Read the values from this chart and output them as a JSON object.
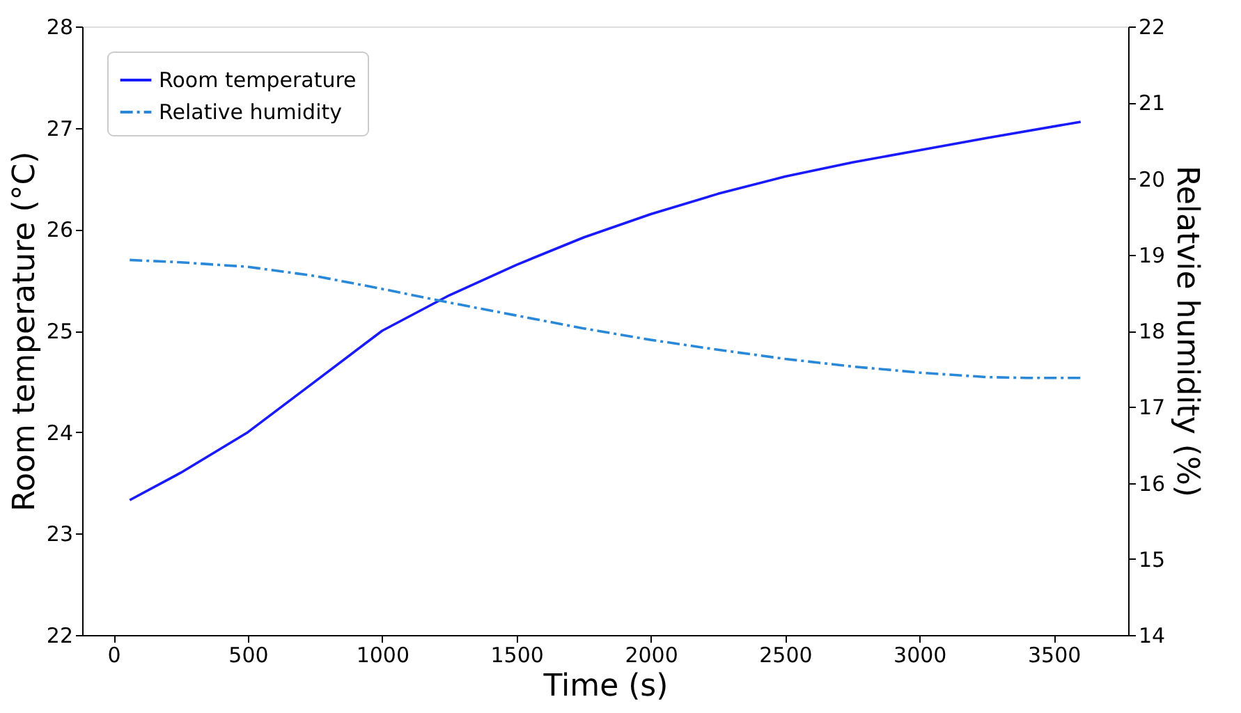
{
  "chart_data": {
    "type": "line",
    "xlabel": "Time (s)",
    "ylabel": "Room temperature (°C)",
    "y2label": "Relatvie humidity (%)",
    "xlim": [
      -117,
      3777
    ],
    "xticks": [
      0,
      500,
      1000,
      1500,
      2000,
      2500,
      3000,
      3500
    ],
    "ylim": [
      22,
      28
    ],
    "yticks": [
      22,
      23,
      24,
      25,
      26,
      27,
      28
    ],
    "y2lim": [
      14,
      22
    ],
    "y2ticks": [
      14,
      15,
      16,
      17,
      18,
      19,
      20,
      21,
      22
    ],
    "grid": false,
    "legend": "top left",
    "marker": "none",
    "series": [
      {
        "name": "Room temperature",
        "color": "#1a1aff",
        "line_style": "solid",
        "x": [
          60,
          250,
          500,
          750,
          1000,
          1250,
          1500,
          1750,
          2000,
          2250,
          2500,
          2750,
          3000,
          3250,
          3600
        ],
        "values": [
          23.33,
          23.6,
          24.0,
          24.5,
          25.0,
          25.35,
          25.65,
          25.92,
          26.15,
          26.35,
          26.52,
          26.66,
          26.78,
          26.9,
          27.06
        ]
      },
      {
        "name": "Relative humidity",
        "color": "#2a88d8",
        "line_style": "dashdot",
        "axis": "y2",
        "x": [
          60,
          250,
          500,
          750,
          1000,
          1250,
          1500,
          1750,
          2000,
          2250,
          2500,
          2750,
          3000,
          3250,
          3400,
          3600
        ],
        "values": [
          18.93,
          18.9,
          18.84,
          18.72,
          18.55,
          18.37,
          18.2,
          18.03,
          17.88,
          17.75,
          17.63,
          17.53,
          17.45,
          17.39,
          17.38,
          17.38
        ]
      }
    ]
  }
}
